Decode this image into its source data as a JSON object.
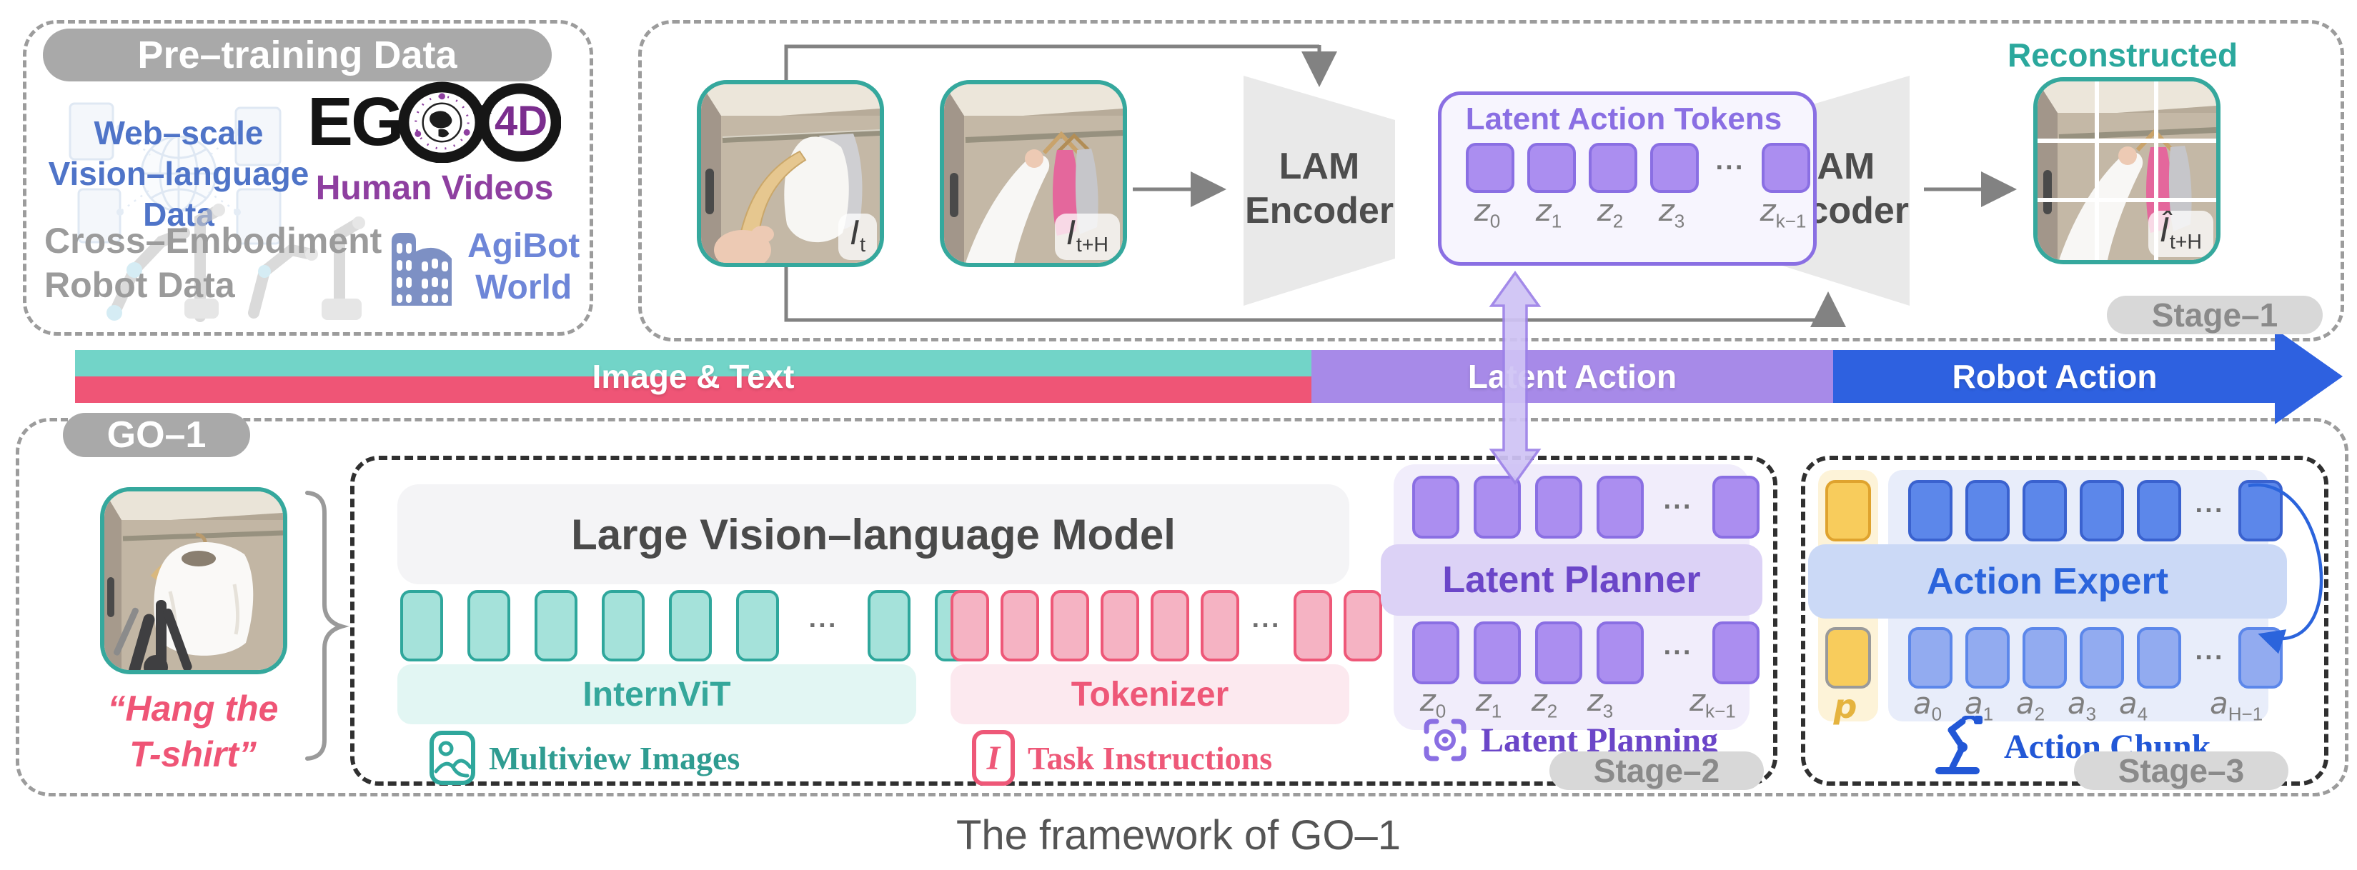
{
  "pretraining": {
    "title": "Pre–training Data",
    "web_scale_lines": [
      "Web–scale",
      "Vision–language",
      "Data"
    ],
    "ego": {
      "eg": "EG",
      "four_d": "4D",
      "caption": "Human Videos"
    },
    "cross_lines": [
      "Cross–Embodiment",
      "Robot Data"
    ],
    "agibot_lines": [
      "AgiBot",
      "World"
    ]
  },
  "stage1": {
    "pill": "Stage–1",
    "encoder_lines": [
      "LAM",
      "Encoder"
    ],
    "decoder_lines": [
      "LAM",
      "Decoder"
    ],
    "tokens_box_title": "Latent Action Tokens",
    "reconstructed_label": "Reconstructed",
    "image_labels": {
      "current": [
        "I",
        "t"
      ],
      "future": [
        "I",
        "t+H"
      ],
      "recon": [
        "Î",
        "t+H"
      ]
    },
    "z_labels": [
      [
        "z",
        "0"
      ],
      [
        "z",
        "1"
      ],
      [
        "z",
        "2"
      ],
      [
        "z",
        "3"
      ],
      null,
      [
        "z",
        "k−1"
      ]
    ]
  },
  "timeline": {
    "image_text": "Image & Text",
    "latent_action": "Latent Action",
    "robot_action": "Robot Action"
  },
  "go1": {
    "pill": "GO–1",
    "instruction_lines": [
      "“Hang the",
      "T-shirt”"
    ],
    "vlm_title": "Large Vision–language Model",
    "internvit": "InternViT",
    "tokenizer": "Tokenizer",
    "multiview_caption": "Multiview Images",
    "task_caption": "Task Instructions",
    "task_icon_glyph": "I",
    "planner": {
      "title": "Latent Planner",
      "caption": "Latent Planning",
      "pill": "Stage–2",
      "z_labels": [
        [
          "z",
          "0"
        ],
        [
          "z",
          "1"
        ],
        [
          "z",
          "2"
        ],
        [
          "z",
          "3"
        ],
        null,
        [
          "z",
          "k−1"
        ]
      ]
    },
    "expert": {
      "title": "Action Expert",
      "caption": "Action Chunk",
      "pill": "Stage–3",
      "p_label": [
        "p",
        ""
      ],
      "a_labels": [
        [
          "a",
          "0"
        ],
        [
          "a",
          "1"
        ],
        [
          "a",
          "2"
        ],
        [
          "a",
          "3"
        ],
        [
          "a",
          "4"
        ],
        null,
        [
          "a",
          "H−1"
        ]
      ]
    }
  },
  "tokens": {
    "lam": {
      "before": 4,
      "after": 1
    },
    "vlm_teal": {
      "before": 6,
      "after": 2
    },
    "vlm_pink": {
      "before": 6,
      "after": 2
    },
    "planner_top": {
      "before": 4,
      "after": 1
    },
    "planner_bottom": {
      "before": 4,
      "after": 1
    },
    "expert_top": {
      "before": 5,
      "after": 1
    },
    "expert_bottom": {
      "before": 5,
      "after": 1
    }
  },
  "misc": {
    "dots": "···"
  },
  "caption": "The framework of GO–1",
  "colors": {
    "teal": "#2fa79c",
    "pink": "#ee5878",
    "purple": "#8a6fe3",
    "bar_teal": "#72d4c8",
    "bar_pink": "#ef5576",
    "bar_purple": "#a78ae8",
    "bar_blue": "#2e61e0",
    "blue_text": "#2b64dc",
    "planner_text": "#6b46c8",
    "yellow": "#f8cc5c",
    "gray_pill": "#a9a9a9",
    "stage_text": "#8a8a8a"
  }
}
